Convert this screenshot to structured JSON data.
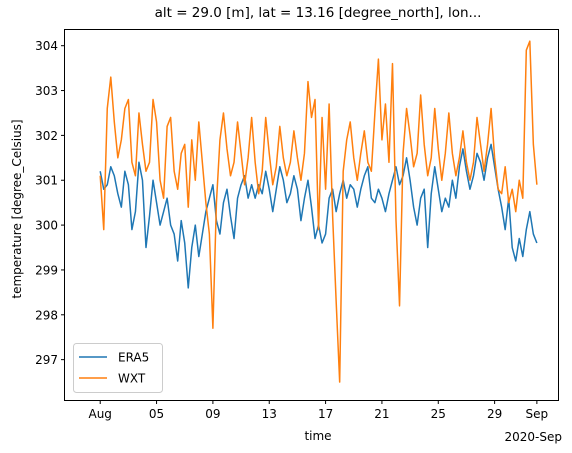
{
  "chart_data": {
    "type": "line",
    "title": "alt = 29.0 [m], lat = 13.16 [degree_north], lon...",
    "xlabel": "time",
    "ylabel": "temperature [degree_Celsius]",
    "x_ticks": [
      "Aug",
      "05",
      "09",
      "13",
      "17",
      "21",
      "25",
      "29",
      "Sep"
    ],
    "x_tick_dates": [
      "2020-08-01",
      "2020-08-05",
      "2020-08-09",
      "2020-08-13",
      "2020-08-17",
      "2020-08-21",
      "2020-08-25",
      "2020-08-29",
      "2020-09-01"
    ],
    "x_offset_label": "2020-Sep",
    "xlim": [
      "2020-07-29T12:00",
      "2020-09-02T12:00"
    ],
    "ylim": [
      296.1,
      304.35
    ],
    "y_ticks": [
      297,
      298,
      299,
      300,
      301,
      302,
      303,
      304
    ],
    "grid": false,
    "legend_position": "lower-left",
    "series": [
      {
        "name": "ERA5",
        "color": "#1f77b4",
        "points": [
          [
            "2020-08-01T00:00",
            301.2
          ],
          [
            "2020-08-01T06:00",
            300.8
          ],
          [
            "2020-08-01T12:00",
            300.9
          ],
          [
            "2020-08-01T18:00",
            301.3
          ],
          [
            "2020-08-02T00:00",
            301.1
          ],
          [
            "2020-08-02T06:00",
            300.7
          ],
          [
            "2020-08-02T12:00",
            300.4
          ],
          [
            "2020-08-02T18:00",
            301.2
          ],
          [
            "2020-08-03T00:00",
            300.9
          ],
          [
            "2020-08-03T06:00",
            299.9
          ],
          [
            "2020-08-03T12:00",
            300.3
          ],
          [
            "2020-08-03T18:00",
            301.4
          ],
          [
            "2020-08-04T00:00",
            301.0
          ],
          [
            "2020-08-04T06:00",
            299.5
          ],
          [
            "2020-08-04T12:00",
            300.2
          ],
          [
            "2020-08-04T18:00",
            301.0
          ],
          [
            "2020-08-05T00:00",
            300.5
          ],
          [
            "2020-08-05T06:00",
            300.0
          ],
          [
            "2020-08-05T12:00",
            300.3
          ],
          [
            "2020-08-05T18:00",
            300.6
          ],
          [
            "2020-08-06T00:00",
            300.0
          ],
          [
            "2020-08-06T06:00",
            299.8
          ],
          [
            "2020-08-06T12:00",
            299.2
          ],
          [
            "2020-08-06T18:00",
            300.1
          ],
          [
            "2020-08-07T00:00",
            299.6
          ],
          [
            "2020-08-07T06:00",
            298.6
          ],
          [
            "2020-08-07T12:00",
            299.5
          ],
          [
            "2020-08-07T18:00",
            300.0
          ],
          [
            "2020-08-08T00:00",
            299.3
          ],
          [
            "2020-08-08T06:00",
            299.8
          ],
          [
            "2020-08-08T12:00",
            300.3
          ],
          [
            "2020-08-08T18:00",
            300.6
          ],
          [
            "2020-08-09T00:00",
            300.9
          ],
          [
            "2020-08-09T06:00",
            300.1
          ],
          [
            "2020-08-09T12:00",
            299.8
          ],
          [
            "2020-08-09T18:00",
            300.5
          ],
          [
            "2020-08-10T00:00",
            300.8
          ],
          [
            "2020-08-10T06:00",
            300.2
          ],
          [
            "2020-08-10T12:00",
            299.7
          ],
          [
            "2020-08-10T18:00",
            300.6
          ],
          [
            "2020-08-11T00:00",
            300.9
          ],
          [
            "2020-08-11T06:00",
            301.1
          ],
          [
            "2020-08-11T12:00",
            300.6
          ],
          [
            "2020-08-11T18:00",
            300.9
          ],
          [
            "2020-08-12T00:00",
            300.6
          ],
          [
            "2020-08-12T06:00",
            300.9
          ],
          [
            "2020-08-12T12:00",
            300.7
          ],
          [
            "2020-08-12T18:00",
            301.2
          ],
          [
            "2020-08-13T00:00",
            300.8
          ],
          [
            "2020-08-13T06:00",
            300.3
          ],
          [
            "2020-08-13T12:00",
            300.8
          ],
          [
            "2020-08-13T18:00",
            301.3
          ],
          [
            "2020-08-14T00:00",
            301.0
          ],
          [
            "2020-08-14T06:00",
            300.5
          ],
          [
            "2020-08-14T12:00",
            300.7
          ],
          [
            "2020-08-14T18:00",
            301.1
          ],
          [
            "2020-08-15T00:00",
            300.8
          ],
          [
            "2020-08-15T06:00",
            300.1
          ],
          [
            "2020-08-15T12:00",
            300.6
          ],
          [
            "2020-08-15T18:00",
            301.0
          ],
          [
            "2020-08-16T00:00",
            300.4
          ],
          [
            "2020-08-16T06:00",
            299.7
          ],
          [
            "2020-08-16T12:00",
            300.0
          ],
          [
            "2020-08-16T18:00",
            299.6
          ],
          [
            "2020-08-17T00:00",
            299.8
          ],
          [
            "2020-08-17T06:00",
            300.6
          ],
          [
            "2020-08-17T12:00",
            300.8
          ],
          [
            "2020-08-17T18:00",
            300.3
          ],
          [
            "2020-08-18T00:00",
            300.7
          ],
          [
            "2020-08-18T06:00",
            301.0
          ],
          [
            "2020-08-18T12:00",
            300.6
          ],
          [
            "2020-08-18T18:00",
            300.9
          ],
          [
            "2020-08-19T00:00",
            300.8
          ],
          [
            "2020-08-19T06:00",
            300.4
          ],
          [
            "2020-08-19T12:00",
            300.8
          ],
          [
            "2020-08-19T18:00",
            301.1
          ],
          [
            "2020-08-20T00:00",
            301.3
          ],
          [
            "2020-08-20T06:00",
            300.6
          ],
          [
            "2020-08-20T12:00",
            300.5
          ],
          [
            "2020-08-20T18:00",
            300.8
          ],
          [
            "2020-08-21T00:00",
            300.6
          ],
          [
            "2020-08-21T06:00",
            300.3
          ],
          [
            "2020-08-21T12:00",
            300.7
          ],
          [
            "2020-08-21T18:00",
            301.0
          ],
          [
            "2020-08-22T00:00",
            301.3
          ],
          [
            "2020-08-22T06:00",
            300.9
          ],
          [
            "2020-08-22T12:00",
            301.1
          ],
          [
            "2020-08-22T18:00",
            301.5
          ],
          [
            "2020-08-23T00:00",
            301.0
          ],
          [
            "2020-08-23T06:00",
            300.4
          ],
          [
            "2020-08-23T12:00",
            300.0
          ],
          [
            "2020-08-23T18:00",
            300.6
          ],
          [
            "2020-08-24T00:00",
            300.8
          ],
          [
            "2020-08-24T06:00",
            299.5
          ],
          [
            "2020-08-24T12:00",
            300.7
          ],
          [
            "2020-08-24T18:00",
            301.3
          ],
          [
            "2020-08-25T00:00",
            300.8
          ],
          [
            "2020-08-25T06:00",
            300.3
          ],
          [
            "2020-08-25T12:00",
            300.6
          ],
          [
            "2020-08-25T18:00",
            300.4
          ],
          [
            "2020-08-26T00:00",
            301.0
          ],
          [
            "2020-08-26T06:00",
            300.6
          ],
          [
            "2020-08-26T12:00",
            301.3
          ],
          [
            "2020-08-26T18:00",
            301.7
          ],
          [
            "2020-08-27T00:00",
            301.2
          ],
          [
            "2020-08-27T06:00",
            300.8
          ],
          [
            "2020-08-27T12:00",
            301.1
          ],
          [
            "2020-08-27T18:00",
            301.6
          ],
          [
            "2020-08-28T00:00",
            301.4
          ],
          [
            "2020-08-28T06:00",
            301.0
          ],
          [
            "2020-08-28T12:00",
            301.5
          ],
          [
            "2020-08-28T18:00",
            301.8
          ],
          [
            "2020-08-29T00:00",
            301.3
          ],
          [
            "2020-08-29T06:00",
            300.8
          ],
          [
            "2020-08-29T12:00",
            300.4
          ],
          [
            "2020-08-29T18:00",
            299.9
          ],
          [
            "2020-08-30T00:00",
            300.6
          ],
          [
            "2020-08-30T06:00",
            299.5
          ],
          [
            "2020-08-30T12:00",
            299.2
          ],
          [
            "2020-08-30T18:00",
            299.7
          ],
          [
            "2020-08-31T00:00",
            299.3
          ],
          [
            "2020-08-31T06:00",
            299.9
          ],
          [
            "2020-08-31T12:00",
            300.3
          ],
          [
            "2020-08-31T18:00",
            299.8
          ],
          [
            "2020-09-01T00:00",
            299.6
          ]
        ]
      },
      {
        "name": "WXT",
        "color": "#ff7f0e",
        "points": [
          [
            "2020-08-01T00:00",
            301.1
          ],
          [
            "2020-08-01T06:00",
            299.9
          ],
          [
            "2020-08-01T12:00",
            302.6
          ],
          [
            "2020-08-01T18:00",
            303.3
          ],
          [
            "2020-08-02T00:00",
            302.3
          ],
          [
            "2020-08-02T06:00",
            301.5
          ],
          [
            "2020-08-02T12:00",
            301.9
          ],
          [
            "2020-08-02T18:00",
            302.6
          ],
          [
            "2020-08-03T00:00",
            302.8
          ],
          [
            "2020-08-03T06:00",
            301.4
          ],
          [
            "2020-08-03T12:00",
            301.1
          ],
          [
            "2020-08-03T18:00",
            302.5
          ],
          [
            "2020-08-04T00:00",
            301.8
          ],
          [
            "2020-08-04T06:00",
            301.2
          ],
          [
            "2020-08-04T12:00",
            301.4
          ],
          [
            "2020-08-04T18:00",
            302.8
          ],
          [
            "2020-08-05T00:00",
            302.3
          ],
          [
            "2020-08-05T06:00",
            301.0
          ],
          [
            "2020-08-05T12:00",
            300.6
          ],
          [
            "2020-08-05T18:00",
            302.2
          ],
          [
            "2020-08-06T00:00",
            302.4
          ],
          [
            "2020-08-06T06:00",
            301.2
          ],
          [
            "2020-08-06T12:00",
            300.8
          ],
          [
            "2020-08-06T18:00",
            301.6
          ],
          [
            "2020-08-07T00:00",
            301.8
          ],
          [
            "2020-08-07T06:00",
            300.4
          ],
          [
            "2020-08-07T12:00",
            301.9
          ],
          [
            "2020-08-07T18:00",
            301.0
          ],
          [
            "2020-08-08T00:00",
            302.3
          ],
          [
            "2020-08-08T06:00",
            301.4
          ],
          [
            "2020-08-08T12:00",
            300.5
          ],
          [
            "2020-08-08T18:00",
            299.8
          ],
          [
            "2020-08-09T00:00",
            297.7
          ],
          [
            "2020-08-09T06:00",
            300.5
          ],
          [
            "2020-08-09T12:00",
            301.9
          ],
          [
            "2020-08-09T18:00",
            302.5
          ],
          [
            "2020-08-10T00:00",
            301.7
          ],
          [
            "2020-08-10T06:00",
            301.1
          ],
          [
            "2020-08-10T12:00",
            301.4
          ],
          [
            "2020-08-10T18:00",
            302.3
          ],
          [
            "2020-08-11T00:00",
            301.6
          ],
          [
            "2020-08-11T06:00",
            300.9
          ],
          [
            "2020-08-11T12:00",
            301.5
          ],
          [
            "2020-08-11T18:00",
            302.4
          ],
          [
            "2020-08-12T00:00",
            301.4
          ],
          [
            "2020-08-12T06:00",
            300.7
          ],
          [
            "2020-08-12T12:00",
            301.2
          ],
          [
            "2020-08-12T18:00",
            302.4
          ],
          [
            "2020-08-13T00:00",
            301.6
          ],
          [
            "2020-08-13T06:00",
            300.9
          ],
          [
            "2020-08-13T12:00",
            301.3
          ],
          [
            "2020-08-13T18:00",
            302.2
          ],
          [
            "2020-08-14T00:00",
            301.5
          ],
          [
            "2020-08-14T06:00",
            301.1
          ],
          [
            "2020-08-14T12:00",
            301.4
          ],
          [
            "2020-08-14T18:00",
            302.1
          ],
          [
            "2020-08-15T00:00",
            301.5
          ],
          [
            "2020-08-15T06:00",
            301.0
          ],
          [
            "2020-08-15T12:00",
            301.6
          ],
          [
            "2020-08-15T18:00",
            303.2
          ],
          [
            "2020-08-16T00:00",
            302.4
          ],
          [
            "2020-08-16T06:00",
            302.8
          ],
          [
            "2020-08-16T12:00",
            299.9
          ],
          [
            "2020-08-16T18:00",
            302.4
          ],
          [
            "2020-08-17T00:00",
            300.8
          ],
          [
            "2020-08-17T06:00",
            302.7
          ],
          [
            "2020-08-17T12:00",
            300.2
          ],
          [
            "2020-08-17T18:00",
            298.3
          ],
          [
            "2020-08-18T00:00",
            296.5
          ],
          [
            "2020-08-18T06:00",
            301.2
          ],
          [
            "2020-08-18T12:00",
            301.9
          ],
          [
            "2020-08-18T18:00",
            302.3
          ],
          [
            "2020-08-19T00:00",
            301.5
          ],
          [
            "2020-08-19T06:00",
            301.0
          ],
          [
            "2020-08-19T12:00",
            301.6
          ],
          [
            "2020-08-19T18:00",
            302.1
          ],
          [
            "2020-08-20T00:00",
            301.4
          ],
          [
            "2020-08-20T06:00",
            301.2
          ],
          [
            "2020-08-20T12:00",
            302.5
          ],
          [
            "2020-08-20T18:00",
            303.7
          ],
          [
            "2020-08-21T00:00",
            301.9
          ],
          [
            "2020-08-21T06:00",
            302.7
          ],
          [
            "2020-08-21T12:00",
            301.4
          ],
          [
            "2020-08-21T18:00",
            303.6
          ],
          [
            "2020-08-22T00:00",
            300.1
          ],
          [
            "2020-08-22T06:00",
            298.2
          ],
          [
            "2020-08-22T12:00",
            301.6
          ],
          [
            "2020-08-22T18:00",
            302.6
          ],
          [
            "2020-08-23T00:00",
            302.0
          ],
          [
            "2020-08-23T06:00",
            301.3
          ],
          [
            "2020-08-23T12:00",
            301.6
          ],
          [
            "2020-08-23T18:00",
            302.9
          ],
          [
            "2020-08-24T00:00",
            301.8
          ],
          [
            "2020-08-24T06:00",
            301.1
          ],
          [
            "2020-08-24T12:00",
            301.5
          ],
          [
            "2020-08-24T18:00",
            302.6
          ],
          [
            "2020-08-25T00:00",
            301.7
          ],
          [
            "2020-08-25T06:00",
            301.0
          ],
          [
            "2020-08-25T12:00",
            301.6
          ],
          [
            "2020-08-25T18:00",
            302.5
          ],
          [
            "2020-08-26T00:00",
            301.6
          ],
          [
            "2020-08-26T06:00",
            301.1
          ],
          [
            "2020-08-26T12:00",
            301.5
          ],
          [
            "2020-08-26T18:00",
            302.1
          ],
          [
            "2020-08-27T00:00",
            301.4
          ],
          [
            "2020-08-27T06:00",
            301.0
          ],
          [
            "2020-08-27T12:00",
            301.4
          ],
          [
            "2020-08-27T18:00",
            302.4
          ],
          [
            "2020-08-28T00:00",
            301.8
          ],
          [
            "2020-08-28T06:00",
            301.2
          ],
          [
            "2020-08-28T12:00",
            301.8
          ],
          [
            "2020-08-28T18:00",
            302.6
          ],
          [
            "2020-08-29T00:00",
            301.5
          ],
          [
            "2020-08-29T06:00",
            300.8
          ],
          [
            "2020-08-29T12:00",
            300.7
          ],
          [
            "2020-08-29T18:00",
            301.3
          ],
          [
            "2020-08-30T00:00",
            300.5
          ],
          [
            "2020-08-30T06:00",
            300.8
          ],
          [
            "2020-08-30T12:00",
            300.3
          ],
          [
            "2020-08-30T18:00",
            301.0
          ],
          [
            "2020-08-31T00:00",
            300.6
          ],
          [
            "2020-08-31T06:00",
            303.9
          ],
          [
            "2020-08-31T12:00",
            304.1
          ],
          [
            "2020-08-31T18:00",
            301.8
          ],
          [
            "2020-09-01T00:00",
            300.9
          ]
        ]
      }
    ]
  }
}
